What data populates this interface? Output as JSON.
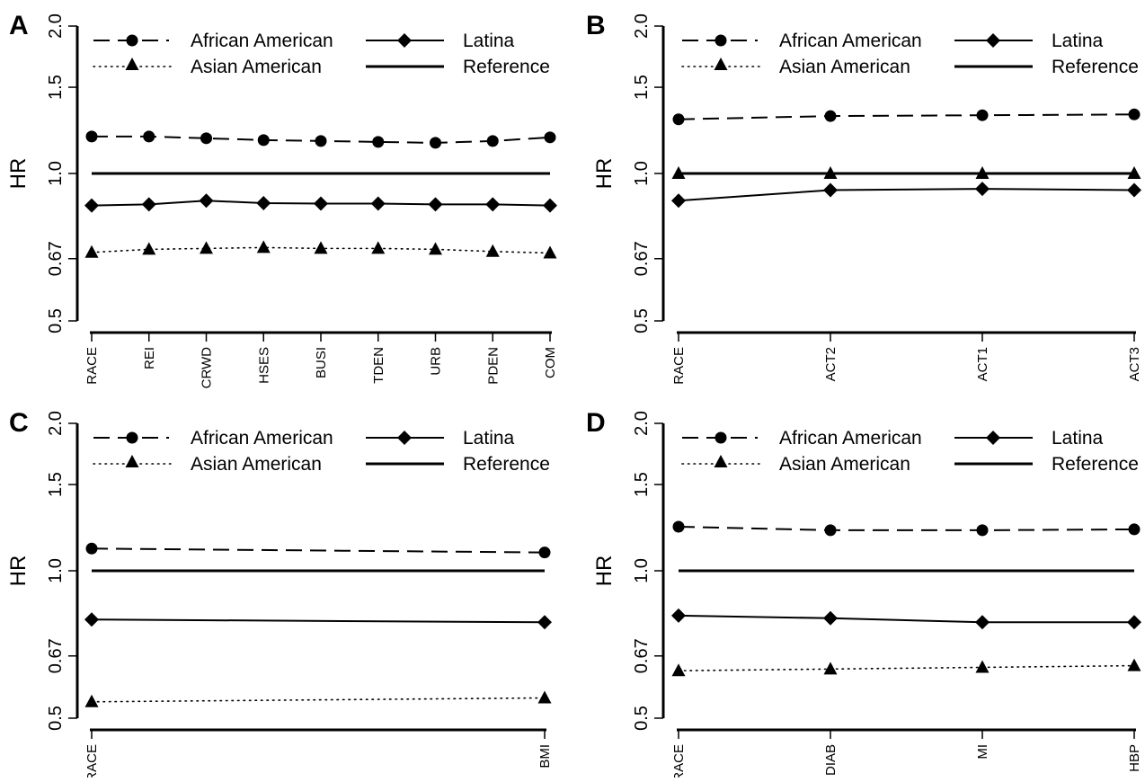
{
  "legend": [
    {
      "key": "aa",
      "label": "African American"
    },
    {
      "key": "latina",
      "label": "Latina"
    },
    {
      "key": "asian",
      "label": "Asian American"
    },
    {
      "key": "reference",
      "label": "Reference"
    }
  ],
  "colors": {
    "lines": "#000000",
    "background": "#ffffff"
  },
  "chart_data": [
    {
      "panel": "A",
      "type": "line",
      "ylabel": "HR",
      "y_scale": "log",
      "ylim": [
        0.5,
        2.0
      ],
      "yticks": [
        "0.5",
        "0.67",
        "1.0",
        "1.5",
        "2.0"
      ],
      "categories": [
        "RACE",
        "REI",
        "CRWD",
        "HSES",
        "BUSI",
        "TDEN",
        "URB",
        "PDEN",
        "COM"
      ],
      "series": [
        {
          "name": "African American",
          "values": [
            1.19,
            1.19,
            1.18,
            1.17,
            1.165,
            1.16,
            1.155,
            1.165,
            1.185
          ]
        },
        {
          "name": "Latina",
          "values": [
            0.86,
            0.865,
            0.88,
            0.87,
            0.868,
            0.868,
            0.865,
            0.865,
            0.86
          ]
        },
        {
          "name": "Asian American",
          "values": [
            0.69,
            0.7,
            0.703,
            0.706,
            0.703,
            0.703,
            0.7,
            0.693,
            0.688
          ]
        }
      ],
      "reference": 1.0
    },
    {
      "panel": "B",
      "type": "line",
      "ylabel": "HR",
      "y_scale": "log",
      "ylim": [
        0.5,
        2.0
      ],
      "yticks": [
        "0.5",
        "0.67",
        "1.0",
        "1.5",
        "2.0"
      ],
      "categories": [
        "RACE",
        "ACT2",
        "ACT1",
        "ACT3"
      ],
      "series": [
        {
          "name": "African American",
          "values": [
            1.29,
            1.31,
            1.315,
            1.32
          ]
        },
        {
          "name": "Latina",
          "values": [
            0.88,
            0.925,
            0.93,
            0.925
          ]
        },
        {
          "name": "Asian American",
          "values": [
            1.0,
            1.0,
            1.0,
            1.0
          ]
        }
      ],
      "reference": 1.0
    },
    {
      "panel": "C",
      "type": "line",
      "ylabel": "HR",
      "y_scale": "log",
      "ylim": [
        0.5,
        2.0
      ],
      "yticks": [
        "0.5",
        "0.67",
        "1.0",
        "1.5",
        "2.0"
      ],
      "categories": [
        "RACE",
        "BMI"
      ],
      "series": [
        {
          "name": "African American",
          "values": [
            1.11,
            1.09
          ]
        },
        {
          "name": "Latina",
          "values": [
            0.795,
            0.785
          ]
        },
        {
          "name": "Asian American",
          "values": [
            0.54,
            0.55
          ]
        }
      ],
      "reference": 1.0
    },
    {
      "panel": "D",
      "type": "line",
      "ylabel": "HR",
      "y_scale": "log",
      "ylim": [
        0.5,
        2.0
      ],
      "yticks": [
        "0.5",
        "0.67",
        "1.0",
        "1.5",
        "2.0"
      ],
      "categories": [
        "RACE",
        "DIAB",
        "MI",
        "HBP"
      ],
      "series": [
        {
          "name": "African American",
          "values": [
            1.23,
            1.21,
            1.21,
            1.215
          ]
        },
        {
          "name": "Latina",
          "values": [
            0.81,
            0.8,
            0.785,
            0.785
          ]
        },
        {
          "name": "Asian American",
          "values": [
            0.625,
            0.63,
            0.635,
            0.64
          ]
        }
      ],
      "reference": 1.0
    }
  ]
}
